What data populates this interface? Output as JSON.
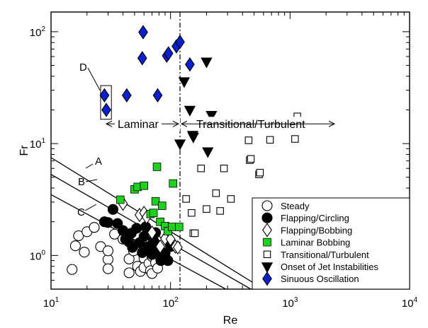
{
  "chart_data": {
    "type": "scatter",
    "xlabel": "Re",
    "ylabel": "Fr",
    "xscale": "log",
    "yscale": "log",
    "xlim": [
      10,
      10000
    ],
    "ylim": [
      0.5,
      150
    ],
    "x_tick_labels": [
      {
        "value": 10,
        "base": "10",
        "exp": "1"
      },
      {
        "value": 100,
        "base": "10",
        "exp": "2"
      },
      {
        "value": 1000,
        "base": "10",
        "exp": "3"
      },
      {
        "value": 10000,
        "base": "10",
        "exp": "4"
      }
    ],
    "y_tick_labels": [
      {
        "value": 1,
        "base": "10",
        "exp": "0"
      },
      {
        "value": 10,
        "base": "10",
        "exp": "1"
      },
      {
        "value": 100,
        "base": "10",
        "exp": "2"
      }
    ],
    "legend_position": "bottom-right",
    "series": [
      {
        "name": "Steady",
        "marker": "circle-open",
        "color": "#000000",
        "points": [
          [
            15,
            0.75
          ],
          [
            16,
            1.22
          ],
          [
            17,
            1.5
          ],
          [
            19,
            1.07
          ],
          [
            20,
            1.63
          ],
          [
            23,
            1.78
          ],
          [
            26,
            1.2
          ],
          [
            30,
            0.92
          ],
          [
            30,
            0.76
          ],
          [
            30,
            1.1
          ],
          [
            34,
            1.55
          ],
          [
            40,
            1.4
          ],
          [
            45,
            0.93
          ],
          [
            45,
            0.7
          ],
          [
            49,
            1.1
          ],
          [
            53,
            0.8
          ],
          [
            56,
            0.72
          ],
          [
            60,
            0.94
          ],
          [
            60,
            0.78
          ],
          [
            66,
            0.85
          ],
          [
            68,
            0.73
          ],
          [
            70,
            0.69
          ],
          [
            70,
            0.98
          ],
          [
            72,
            1.02
          ],
          [
            75,
            0.86
          ],
          [
            78,
            0.77
          ],
          [
            80,
            1.0
          ],
          [
            85,
            0.95
          ]
        ]
      },
      {
        "name": "Flapping/Circling",
        "marker": "circle-filled",
        "color": "#000000",
        "points": [
          [
            28,
            2.0
          ],
          [
            30,
            1.97
          ],
          [
            33,
            2.58
          ],
          [
            36,
            1.93
          ],
          [
            40,
            1.67
          ],
          [
            42,
            1.4
          ],
          [
            45,
            1.32
          ],
          [
            47,
            1.58
          ],
          [
            48,
            1.18
          ],
          [
            52,
            1.75
          ],
          [
            55,
            1.3
          ],
          [
            58,
            1.06
          ],
          [
            60,
            1.48
          ],
          [
            62,
            1.8
          ],
          [
            65,
            1.2
          ],
          [
            68,
            1.08
          ],
          [
            70,
            1.02
          ],
          [
            72,
            1.36
          ],
          [
            75,
            1.6
          ],
          [
            77,
            1.24
          ],
          [
            80,
            1.12
          ],
          [
            83,
            0.9
          ],
          [
            86,
            0.98
          ],
          [
            90,
            1.05
          ],
          [
            95,
            0.9
          ],
          [
            100,
            1.2
          ]
        ]
      },
      {
        "name": "Flapping/Bobbing",
        "marker": "diamond-open",
        "color": "#000000",
        "points": [
          [
            40,
            2.9
          ],
          [
            55,
            2.3
          ],
          [
            60,
            2.4
          ],
          [
            63,
            2.2
          ],
          [
            70,
            1.6
          ],
          [
            82,
            1.2
          ],
          [
            90,
            1.42
          ],
          [
            100,
            1.4
          ],
          [
            110,
            1.2
          ],
          [
            115,
            1.18
          ]
        ]
      },
      {
        "name": "Laminar Bobbing",
        "marker": "square-filled",
        "color": "#1fd01f",
        "points": [
          [
            38,
            3.15
          ],
          [
            50,
            3.9
          ],
          [
            53,
            4.1
          ],
          [
            60,
            4.2
          ],
          [
            68,
            2.35
          ],
          [
            72,
            2.4
          ],
          [
            75,
            3.05
          ],
          [
            77,
            6.2
          ],
          [
            82,
            2.0
          ],
          [
            85,
            2.78
          ],
          [
            90,
            1.83
          ],
          [
            95,
            1.65
          ],
          [
            103,
            1.8
          ],
          [
            105,
            4.4
          ],
          [
            118,
            1.8
          ]
        ]
      },
      {
        "name": "Transitional/Turbulent",
        "marker": "square-open",
        "color": "#000000",
        "points": [
          [
            135,
            3.2
          ],
          [
            150,
            2.4
          ],
          [
            155,
            1.58
          ],
          [
            160,
            1.58
          ],
          [
            180,
            6.0
          ],
          [
            200,
            2.6
          ],
          [
            240,
            3.6
          ],
          [
            260,
            2.5
          ],
          [
            280,
            6.0
          ],
          [
            320,
            3.2
          ],
          [
            450,
            10.7
          ],
          [
            460,
            7.1
          ],
          [
            470,
            7.3
          ],
          [
            550,
            5.3
          ],
          [
            560,
            5.5
          ],
          [
            680,
            10.8
          ],
          [
            1100,
            11.0
          ],
          [
            1150,
            17.5
          ]
        ]
      },
      {
        "name": "Onset of Jet Instabilities",
        "marker": "triangle-down-filled",
        "color": "#000000",
        "points": [
          [
            120,
            10.0
          ],
          [
            130,
            36.0
          ],
          [
            145,
            20.0
          ],
          [
            150,
            12.5
          ],
          [
            155,
            11.5
          ],
          [
            160,
            13.0
          ],
          [
            200,
            54.0
          ],
          [
            205,
            8.5
          ],
          [
            220,
            18.0
          ]
        ]
      },
      {
        "name": "Sinuous Oscillation",
        "marker": "diamond-filled",
        "color": "#0a1fd0",
        "points": [
          [
            28,
            27.0
          ],
          [
            29,
            20.0
          ],
          [
            43,
            27.0
          ],
          [
            58,
            58.0
          ],
          [
            59,
            99.0
          ],
          [
            78,
            27.0
          ],
          [
            93,
            61.0
          ],
          [
            96,
            64.0
          ],
          [
            112,
            74.0
          ],
          [
            120,
            81.0
          ],
          [
            145,
            51.0
          ]
        ]
      }
    ],
    "lines": [
      {
        "label": "A",
        "points": [
          [
            10,
            7.5
          ],
          [
            600,
            0.5
          ]
        ]
      },
      {
        "label": "B",
        "points": [
          [
            10,
            5.3
          ],
          [
            470,
            0.5
          ]
        ]
      },
      {
        "label": "C",
        "points": [
          [
            10,
            3.5
          ],
          [
            290,
            0.5
          ]
        ]
      }
    ],
    "threshold": {
      "x": 120
    },
    "regimes": {
      "left": "Laminar",
      "right": "Transitional/Turbulent"
    },
    "annotations": [
      {
        "label": "D"
      }
    ]
  }
}
